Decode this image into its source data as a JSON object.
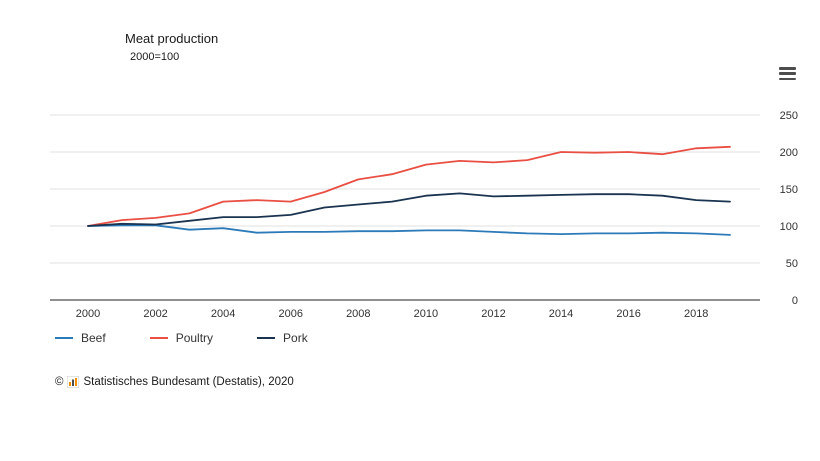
{
  "header": {
    "title": "Meat production",
    "subtitle": "2000=100"
  },
  "menu": {
    "icon": "hamburger-menu-icon"
  },
  "chart_data": {
    "type": "line",
    "title": "Meat production",
    "subtitle": "2000=100",
    "xlabel": "",
    "ylabel": "",
    "ylim": [
      0,
      250
    ],
    "yticks": [
      0,
      50,
      100,
      150,
      200,
      250
    ],
    "xticks": [
      2000,
      2002,
      2004,
      2006,
      2008,
      2010,
      2012,
      2014,
      2016,
      2018
    ],
    "grid": true,
    "legend_position": "bottom",
    "x": [
      2000,
      2001,
      2002,
      2003,
      2004,
      2005,
      2006,
      2007,
      2008,
      2009,
      2010,
      2011,
      2012,
      2013,
      2014,
      2015,
      2016,
      2017,
      2018,
      2019
    ],
    "series": [
      {
        "name": "Beef",
        "color": "#2d7ab9",
        "values": [
          100,
          101,
          101,
          95,
          97,
          91,
          92,
          92,
          93,
          93,
          94,
          94,
          92,
          90,
          89,
          90,
          90,
          91,
          90,
          88
        ]
      },
      {
        "name": "Poultry",
        "color": "#e94f43",
        "values": [
          100,
          108,
          111,
          117,
          133,
          135,
          133,
          146,
          163,
          170,
          183,
          188,
          186,
          189,
          200,
          199,
          200,
          197,
          205,
          207
        ]
      },
      {
        "name": "Pork",
        "color": "#1a3350",
        "values": [
          100,
          103,
          102,
          107,
          112,
          112,
          115,
          125,
          129,
          133,
          141,
          144,
          140,
          141,
          142,
          143,
          143,
          141,
          135,
          133
        ]
      }
    ]
  },
  "legend": {
    "items": [
      {
        "label": "Beef",
        "color": "#2d7ab9"
      },
      {
        "label": "Poultry",
        "color": "#e94f43"
      },
      {
        "label": "Pork",
        "color": "#1a3350"
      }
    ]
  },
  "footer": {
    "copyright": "©",
    "source": "Statistisches Bundesamt (Destatis), 2020"
  },
  "colors": {
    "gridline": "#e0e0e0",
    "axis": "#4d4d4d",
    "logo_orange": "#f39200",
    "logo_dark": "#4d4d4d"
  }
}
